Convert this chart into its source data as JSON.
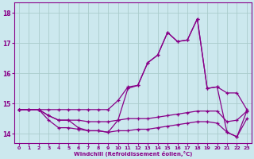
{
  "x": [
    0,
    1,
    2,
    3,
    4,
    5,
    6,
    7,
    8,
    9,
    10,
    11,
    12,
    13,
    14,
    15,
    16,
    17,
    18,
    19,
    20,
    21,
    22,
    23
  ],
  "line1": [
    14.8,
    14.8,
    14.8,
    14.8,
    14.8,
    14.8,
    14.8,
    14.8,
    14.8,
    14.8,
    15.1,
    15.55,
    15.6,
    16.35,
    16.6,
    17.35,
    17.05,
    17.1,
    17.8,
    15.5,
    15.55,
    15.35,
    15.35,
    14.8
  ],
  "line2": [
    14.8,
    14.8,
    14.8,
    14.6,
    14.45,
    14.45,
    14.2,
    14.1,
    14.1,
    14.05,
    14.45,
    15.5,
    15.6,
    16.35,
    16.6,
    17.35,
    17.05,
    17.1,
    17.8,
    15.5,
    15.55,
    14.05,
    13.9,
    14.75
  ],
  "line3": [
    14.8,
    14.8,
    14.8,
    14.6,
    14.45,
    14.45,
    14.45,
    14.4,
    14.4,
    14.4,
    14.45,
    14.5,
    14.5,
    14.5,
    14.55,
    14.6,
    14.65,
    14.7,
    14.75,
    14.75,
    14.75,
    14.4,
    14.45,
    14.75
  ],
  "line4": [
    14.8,
    14.8,
    14.8,
    14.45,
    14.2,
    14.2,
    14.15,
    14.1,
    14.1,
    14.05,
    14.1,
    14.1,
    14.15,
    14.15,
    14.2,
    14.25,
    14.3,
    14.35,
    14.4,
    14.4,
    14.35,
    14.05,
    13.9,
    14.5
  ],
  "bg_color": "#cce8ee",
  "line_color": "#880088",
  "grid_color": "#aacccc",
  "xlabel": "Windchill (Refroidissement éolien,°C)",
  "ylim": [
    13.7,
    18.35
  ],
  "yticks": [
    14,
    15,
    16,
    17,
    18
  ],
  "xticks": [
    0,
    1,
    2,
    3,
    4,
    5,
    6,
    7,
    8,
    9,
    10,
    11,
    12,
    13,
    14,
    15,
    16,
    17,
    18,
    19,
    20,
    21,
    22,
    23
  ]
}
